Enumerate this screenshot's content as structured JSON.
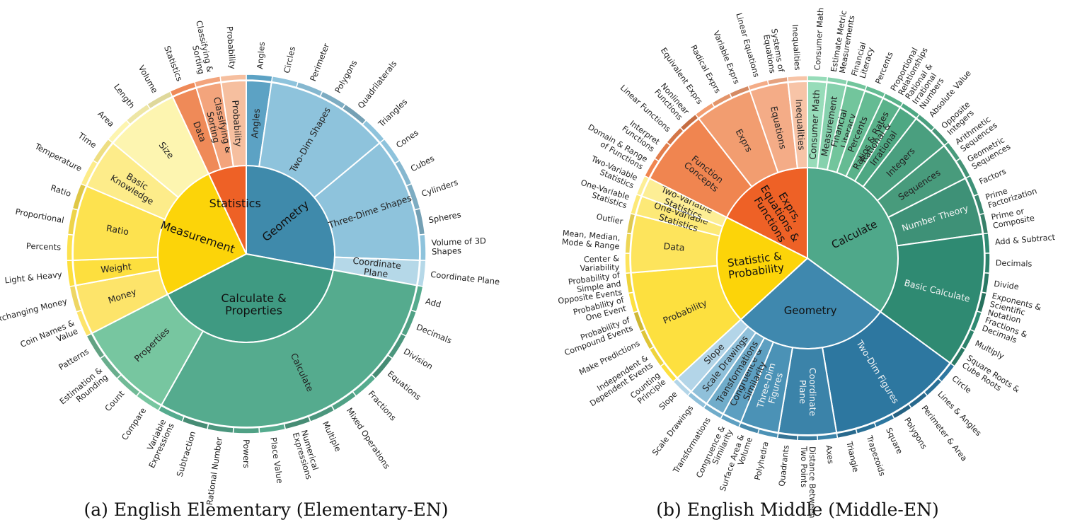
{
  "captions": {
    "a": "(a) English Elementary (Elementary-EN)",
    "b": "(b) English Middle (Middle-EN)"
  },
  "chart_data": [
    {
      "type": "sunburst",
      "title": "",
      "rings": [
        "inner",
        "middle",
        "outer"
      ],
      "children": [
        {
          "name": "Geometry",
          "color": "#3f8aab",
          "children": [
            {
              "name": "Angles",
              "color": "#5ca2c4",
              "children": [
                {
                  "name": "Angles",
                  "value": 1
                }
              ]
            },
            {
              "name": "Two-Dim Shapes",
              "color": "#8ec3dc",
              "children": [
                {
                  "name": "Circles",
                  "value": 1
                },
                {
                  "name": "Perimeter",
                  "value": 1
                },
                {
                  "name": "Polygons",
                  "value": 1
                },
                {
                  "name": "Quadrilaterals",
                  "value": 1
                },
                {
                  "name": "Triangles",
                  "value": 1
                }
              ]
            },
            {
              "name": "Three-Dime Shapes",
              "color": "#8ec3dc",
              "children": [
                {
                  "name": "Cones",
                  "value": 1
                },
                {
                  "name": "Cubes",
                  "value": 1
                },
                {
                  "name": "Cylinders",
                  "value": 1
                },
                {
                  "name": "Spheres",
                  "value": 1
                },
                {
                  "name": "Volume of 3D Shapes",
                  "value": 1
                }
              ]
            },
            {
              "name": "Coordinate Plane",
              "color": "#b5d8e8",
              "children": [
                {
                  "name": "Coordinate Plane",
                  "value": 1
                }
              ]
            }
          ]
        },
        {
          "name": "Calculate & Properties",
          "color": "#3f9a82",
          "children": [
            {
              "name": "Calculate",
              "color": "#55ab8e",
              "children": [
                {
                  "name": "Add",
                  "value": 1
                },
                {
                  "name": "Decimals",
                  "value": 1
                },
                {
                  "name": "Division",
                  "value": 1
                },
                {
                  "name": "Equations",
                  "value": 1
                },
                {
                  "name": "Fractions",
                  "value": 1
                },
                {
                  "name": "Mixed Operations",
                  "value": 1
                },
                {
                  "name": "Multiple",
                  "value": 1
                },
                {
                  "name": "Numerical Expressions",
                  "value": 1
                },
                {
                  "name": "Place Value",
                  "value": 1
                },
                {
                  "name": "Powers",
                  "value": 1
                },
                {
                  "name": "Rational Number",
                  "value": 1
                },
                {
                  "name": "Subtraction",
                  "value": 1
                },
                {
                  "name": "Variable Expressions",
                  "value": 1
                }
              ]
            },
            {
              "name": "Properties",
              "color": "#77c6a0",
              "children": [
                {
                  "name": "Compare",
                  "value": 1
                },
                {
                  "name": "Count",
                  "value": 1
                },
                {
                  "name": "Estimation & Rounding",
                  "value": 1
                },
                {
                  "name": "Patterns",
                  "value": 1
                }
              ]
            }
          ]
        },
        {
          "name": "Measurement",
          "color": "#fcd409",
          "children": [
            {
              "name": "Money",
              "color": "#fde46a",
              "children": [
                {
                  "name": "Coin Names & Value",
                  "value": 1
                },
                {
                  "name": "Exchanging Money",
                  "value": 1
                }
              ]
            },
            {
              "name": "Weight",
              "color": "#fddf3e",
              "children": [
                {
                  "name": "Light & Heavy",
                  "value": 1
                }
              ]
            },
            {
              "name": "Ratio",
              "color": "#fde24f",
              "children": [
                {
                  "name": "Percents",
                  "value": 1
                },
                {
                  "name": "Proportional",
                  "value": 1
                },
                {
                  "name": "Ratio",
                  "value": 1
                }
              ]
            },
            {
              "name": "Basic Knowledge",
              "color": "#fdec8a",
              "children": [
                {
                  "name": "Temperature",
                  "value": 1
                },
                {
                  "name": "Time",
                  "value": 1
                }
              ]
            },
            {
              "name": "Size",
              "color": "#fdf5b0",
              "children": [
                {
                  "name": "Area",
                  "value": 1
                },
                {
                  "name": "Length",
                  "value": 1
                },
                {
                  "name": "Volume",
                  "value": 1
                }
              ]
            }
          ]
        },
        {
          "name": "Statistics",
          "color": "#ee6126",
          "children": [
            {
              "name": "Data",
              "color": "#ef8a58",
              "children": [
                {
                  "name": "Statistics",
                  "value": 1
                }
              ]
            },
            {
              "name": "Classifying & Sorting",
              "color": "#f3a47c",
              "children": [
                {
                  "name": "Classifying & Sorting",
                  "value": 1
                }
              ]
            },
            {
              "name": "Probability",
              "color": "#f6bf9f",
              "children": [
                {
                  "name": "Probability",
                  "value": 1
                }
              ]
            }
          ]
        }
      ]
    },
    {
      "type": "sunburst",
      "title": "",
      "rings": [
        "inner",
        "middle",
        "outer"
      ],
      "children": [
        {
          "name": "Calculate",
          "color": "#4fa88a",
          "children": [
            {
              "name": "Consumer Math",
              "color": "#97dcb9",
              "children": [
                {
                  "name": "Consumer Math",
                  "value": 1
                }
              ]
            },
            {
              "name": "Measurement",
              "color": "#86d1ad",
              "children": [
                {
                  "name": "Estimate Metric Measurements",
                  "value": 1
                }
              ]
            },
            {
              "name": "Financial Literacy",
              "color": "#72c59c",
              "children": [
                {
                  "name": "Financial Literacy",
                  "value": 1
                }
              ]
            },
            {
              "name": "Percents",
              "color": "#65bb93",
              "children": [
                {
                  "name": "Percents",
                  "value": 1
                }
              ]
            },
            {
              "name": "Ratios & Rates",
              "color": "#5ab28a",
              "children": [
                {
                  "name": "Proportional Relationships",
                  "value": 1
                }
              ]
            },
            {
              "name": "Rational & Irrational Numbers",
              "color": "#4ea883",
              "children": [
                {
                  "name": "Rational & Irrational Numbers",
                  "value": 1
                }
              ]
            },
            {
              "name": "Integers",
              "color": "#4a9f7f",
              "children": [
                {
                  "name": "Absolute Value",
                  "value": 1
                },
                {
                  "name": "Opposite Integers",
                  "value": 1
                }
              ]
            },
            {
              "name": "Sequences",
              "color": "#489b7c",
              "children": [
                {
                  "name": "Arithmetic Sequences",
                  "value": 1
                },
                {
                  "name": "Geometric Sequences",
                  "value": 1
                }
              ]
            },
            {
              "name": "Number Theory",
              "color": "#3e9177",
              "children": [
                {
                  "name": "Factors",
                  "value": 1
                },
                {
                  "name": "Prime Factorization",
                  "value": 1
                },
                {
                  "name": "Prime or Composite",
                  "value": 1
                }
              ]
            },
            {
              "name": "Basic Calculate",
              "color": "#2f8a72",
              "children": [
                {
                  "name": "Add & Subtract",
                  "value": 1
                },
                {
                  "name": "Decimals",
                  "value": 1
                },
                {
                  "name": "Divide",
                  "value": 1
                },
                {
                  "name": "Exponents & Scientific Notation",
                  "value": 1
                },
                {
                  "name": "Fractions & Decimals",
                  "value": 1
                },
                {
                  "name": "Multiply",
                  "value": 1
                },
                {
                  "name": "Square Roots & Cube Roots",
                  "value": 1
                }
              ]
            }
          ]
        },
        {
          "name": "Geometry",
          "color": "#3f88ae",
          "children": [
            {
              "name": "Two-Dim Figures",
              "color": "#2d77a0",
              "children": [
                {
                  "name": "Circle",
                  "value": 1
                },
                {
                  "name": "Lines & Angles",
                  "value": 1
                },
                {
                  "name": "Perimeter & Area",
                  "value": 1
                },
                {
                  "name": "Polygons",
                  "value": 1
                },
                {
                  "name": "Square",
                  "value": 1
                },
                {
                  "name": "Trapezoids",
                  "value": 1
                },
                {
                  "name": "Triangle",
                  "value": 1
                }
              ]
            },
            {
              "name": "Coordinate Plane",
              "color": "#3b83a9",
              "children": [
                {
                  "name": "Axes",
                  "value": 1
                },
                {
                  "name": "Distance Between Two Points",
                  "value": 1
                },
                {
                  "name": "Quadrants",
                  "value": 1
                }
              ]
            },
            {
              "name": "Three-Dim Figures",
              "color": "#4b92b6",
              "children": [
                {
                  "name": "Polyhedra",
                  "value": 1
                },
                {
                  "name": "Surface Area & Volume",
                  "value": 1
                }
              ]
            },
            {
              "name": "Congruence & Similarity",
              "color": "#5d9fc1",
              "children": [
                {
                  "name": "Congruence & Similarity",
                  "value": 1
                }
              ]
            },
            {
              "name": "Transformations",
              "color": "#70acca",
              "children": [
                {
                  "name": "Transformations",
                  "value": 1
                }
              ]
            },
            {
              "name": "Scale Drawings",
              "color": "#8fc0da",
              "children": [
                {
                  "name": "Scale Drawings",
                  "value": 1
                }
              ]
            },
            {
              "name": "Slope",
              "color": "#b3d5e8",
              "children": [
                {
                  "name": "Slope",
                  "value": 1
                }
              ]
            }
          ]
        },
        {
          "name": "Statistic & Probability",
          "color": "#fcd409",
          "children": [
            {
              "name": "Probability",
              "color": "#fde03f",
              "children": [
                {
                  "name": "Counting Principle",
                  "value": 1
                },
                {
                  "name": "Independent & Dependent Events",
                  "value": 1
                },
                {
                  "name": "Make Predictions",
                  "value": 1
                },
                {
                  "name": "Probability of Compound Events",
                  "value": 1
                },
                {
                  "name": "Probability of One Event",
                  "value": 1
                },
                {
                  "name": "Probability of Simple and Opposite Events",
                  "value": 1
                }
              ]
            },
            {
              "name": "Data",
              "color": "#fde45c",
              "children": [
                {
                  "name": "Center & Variability",
                  "value": 1
                },
                {
                  "name": "Mean, Median, Mode & Range",
                  "value": 1
                },
                {
                  "name": "Outlier",
                  "value": 1
                }
              ]
            },
            {
              "name": "One-Variable Statistics",
              "color": "#fde977",
              "children": [
                {
                  "name": "One-Variable Statistics",
                  "value": 1
                }
              ]
            },
            {
              "name": "Two-Variable Statistics",
              "color": "#fdee95",
              "children": [
                {
                  "name": "Two-Variable Statistics",
                  "value": 1
                }
              ]
            }
          ]
        },
        {
          "name": "Exprs, Equations & Functions",
          "color": "#ee6126",
          "children": [
            {
              "name": "Function Concepts",
              "color": "#f08550",
              "children": [
                {
                  "name": "Domain & Range of Functions",
                  "value": 1
                },
                {
                  "name": "Interpret Functions",
                  "value": 1
                },
                {
                  "name": "Linear Functions",
                  "value": 1
                },
                {
                  "name": "Nonlinear Functions",
                  "value": 1
                }
              ]
            },
            {
              "name": "Exprs",
              "color": "#f29d70",
              "children": [
                {
                  "name": "Equivalent Exprs",
                  "value": 1
                },
                {
                  "name": "Radical Exprs",
                  "value": 1
                },
                {
                  "name": "Variable Exprs",
                  "value": 1
                }
              ]
            },
            {
              "name": "Equations",
              "color": "#f4ac87",
              "children": [
                {
                  "name": "Linear Equations",
                  "value": 1
                },
                {
                  "name": "Systems of Equations",
                  "value": 1
                }
              ]
            },
            {
              "name": "Inequalities",
              "color": "#f7c4a7",
              "children": [
                {
                  "name": "Inequalities",
                  "value": 1
                }
              ]
            }
          ]
        }
      ]
    }
  ]
}
